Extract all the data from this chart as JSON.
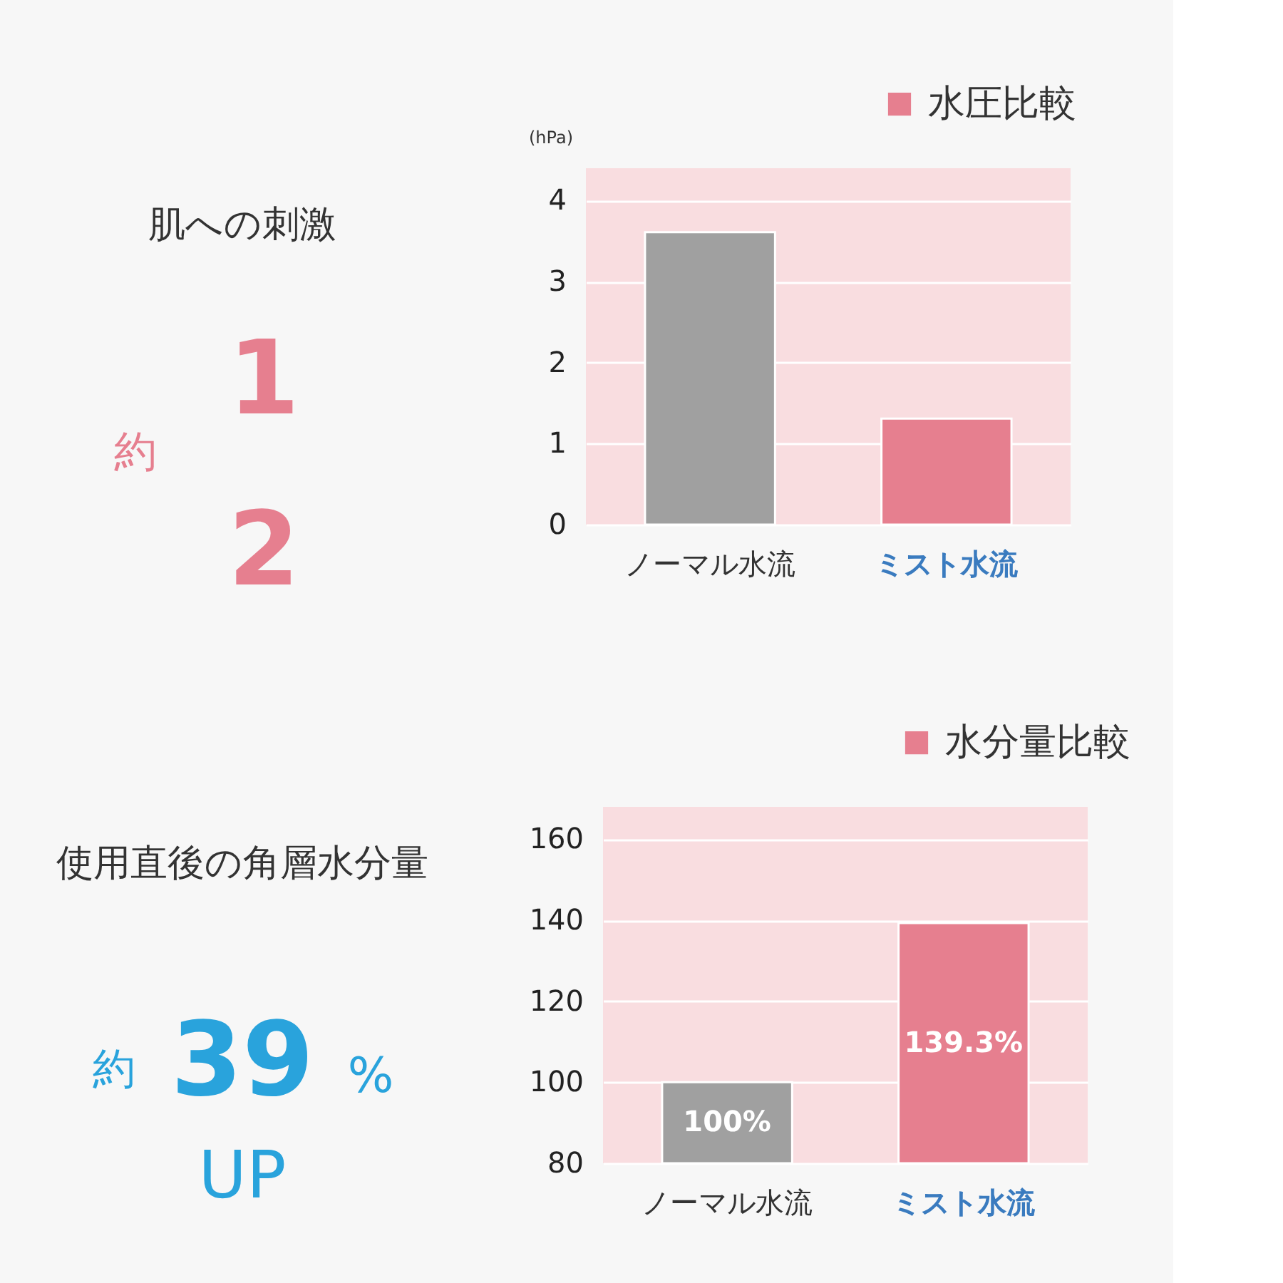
{
  "chart_data": [
    {
      "type": "bar",
      "categories": [
        "ノーマル水流",
        "ミスト水流"
      ],
      "ylabel": "(hPa)",
      "ylim": [
        0,
        4.4
      ],
      "yticks": [
        0,
        1,
        2,
        3,
        4
      ],
      "grid": "y",
      "legend": "top right",
      "series": [
        {
          "name": "水圧比較",
          "color": "#e67f8f",
          "colors": [
            "#a0a0a0",
            "#e67f8f"
          ],
          "values": [
            3.61,
            1.31
          ]
        }
      ],
      "annotations": [
        "肌への刺激",
        "約",
        "1",
        "2"
      ]
    },
    {
      "type": "bar",
      "categories": [
        "ノーマル水流",
        "ミスト水流"
      ],
      "ylim": [
        80,
        168
      ],
      "yticks": [
        80,
        100,
        120,
        140,
        160
      ],
      "grid": "y",
      "legend": "top right",
      "series": [
        {
          "name": "水分量比較",
          "color": "#e67f8f",
          "colors": [
            "#a0a0a0",
            "#e67f8f"
          ],
          "values": [
            100,
            139.3
          ],
          "value_labels": [
            "100%",
            "139.3%"
          ]
        }
      ],
      "annotations": [
        "使用直後の角層水分量",
        "約",
        "39",
        "%",
        "UP"
      ]
    }
  ]
}
